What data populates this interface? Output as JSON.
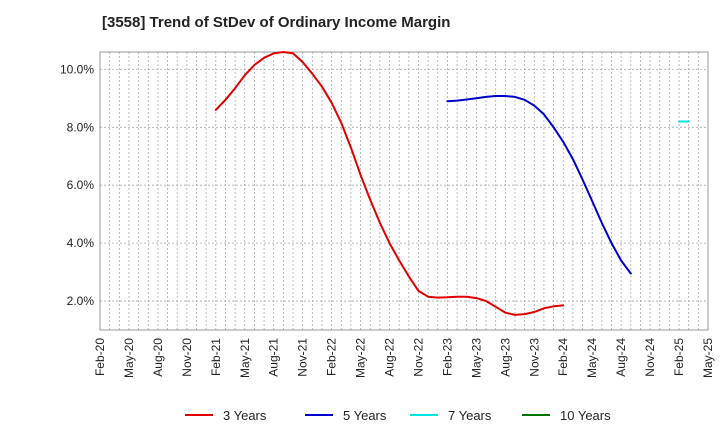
{
  "title": "[3558]  Trend of StDev of Ordinary Income Margin",
  "chart_data": {
    "type": "line",
    "title": "[3558]  Trend of StDev of Ordinary Income Margin",
    "xlabel": "",
    "ylabel": "",
    "x_ticks": [
      "Feb-20",
      "May-20",
      "Aug-20",
      "Nov-20",
      "Feb-21",
      "May-21",
      "Aug-21",
      "Nov-21",
      "Feb-22",
      "May-22",
      "Aug-22",
      "Nov-22",
      "Feb-23",
      "May-23",
      "Aug-23",
      "Nov-23",
      "Feb-24",
      "May-24",
      "Aug-24",
      "Nov-24",
      "Feb-25",
      "May-25"
    ],
    "y_ticks": [
      "2.0%",
      "4.0%",
      "6.0%",
      "8.0%",
      "10.0%"
    ],
    "y_tick_values": [
      2,
      4,
      6,
      8,
      10
    ],
    "ylim": [
      1.0,
      10.6
    ],
    "grid": true,
    "legend_position": "bottom",
    "series": [
      {
        "name": "3 Years",
        "color": "#e00000",
        "points": [
          [
            "Feb-21",
            8.6
          ],
          [
            "Mar-21",
            8.95
          ],
          [
            "Apr-21",
            9.35
          ],
          [
            "May-21",
            9.8
          ],
          [
            "Jun-21",
            10.15
          ],
          [
            "Jul-21",
            10.4
          ],
          [
            "Aug-21",
            10.55
          ],
          [
            "Sep-21",
            10.6
          ],
          [
            "Oct-21",
            10.55
          ],
          [
            "Nov-21",
            10.25
          ],
          [
            "Dec-21",
            9.85
          ],
          [
            "Jan-22",
            9.4
          ],
          [
            "Feb-22",
            8.85
          ],
          [
            "Mar-22",
            8.15
          ],
          [
            "Apr-22",
            7.3
          ],
          [
            "May-22",
            6.35
          ],
          [
            "Jun-22",
            5.5
          ],
          [
            "Jul-22",
            4.7
          ],
          [
            "Aug-22",
            4.0
          ],
          [
            "Sep-22",
            3.4
          ],
          [
            "Oct-22",
            2.85
          ],
          [
            "Nov-22",
            2.35
          ],
          [
            "Dec-22",
            2.15
          ],
          [
            "Jan-23",
            2.12
          ],
          [
            "Feb-23",
            2.13
          ],
          [
            "Mar-23",
            2.15
          ],
          [
            "Apr-23",
            2.15
          ],
          [
            "May-23",
            2.1
          ],
          [
            "Jun-23",
            2.0
          ],
          [
            "Jul-23",
            1.8
          ],
          [
            "Aug-23",
            1.6
          ],
          [
            "Sep-23",
            1.52
          ],
          [
            "Oct-23",
            1.55
          ],
          [
            "Nov-23",
            1.62
          ],
          [
            "Dec-23",
            1.75
          ],
          [
            "Jan-24",
            1.82
          ],
          [
            "Feb-24",
            1.85
          ]
        ]
      },
      {
        "name": "5 Years",
        "color": "#0000cc",
        "points": [
          [
            "Feb-23",
            8.9
          ],
          [
            "Mar-23",
            8.92
          ],
          [
            "Apr-23",
            8.96
          ],
          [
            "May-23",
            9.0
          ],
          [
            "Jun-23",
            9.05
          ],
          [
            "Jul-23",
            9.08
          ],
          [
            "Aug-23",
            9.08
          ],
          [
            "Sep-23",
            9.05
          ],
          [
            "Oct-23",
            8.95
          ],
          [
            "Nov-23",
            8.75
          ],
          [
            "Dec-23",
            8.45
          ],
          [
            "Jan-24",
            8.0
          ],
          [
            "Feb-24",
            7.5
          ],
          [
            "Mar-24",
            6.9
          ],
          [
            "Apr-24",
            6.2
          ],
          [
            "May-24",
            5.45
          ],
          [
            "Jun-24",
            4.7
          ],
          [
            "Jul-24",
            4.0
          ],
          [
            "Aug-24",
            3.4
          ],
          [
            "Sep-24",
            2.95
          ]
        ]
      },
      {
        "name": "7 Years",
        "color": "#00e5e5",
        "points": [
          [
            "Feb-25",
            8.2
          ],
          [
            "Mar-25",
            8.2
          ]
        ]
      },
      {
        "name": "10 Years",
        "color": "#007700",
        "points": []
      }
    ]
  }
}
